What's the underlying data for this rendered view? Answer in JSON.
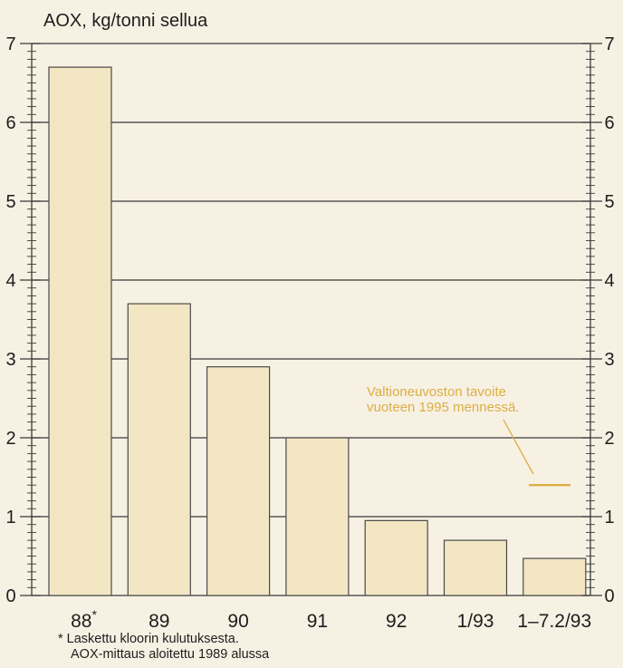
{
  "chart_data": {
    "type": "bar",
    "ylabel": "AOX, kg/tonni sellua",
    "categories": [
      "88",
      "89",
      "90",
      "91",
      "92",
      "1/93",
      "1–7.2/93"
    ],
    "values": [
      6.7,
      3.7,
      2.9,
      2.0,
      0.95,
      0.7,
      0.47
    ],
    "footnote_marker": "*",
    "footnote_marked_index": 0,
    "ylim": [
      0,
      7
    ],
    "yticks": [
      0,
      1,
      2,
      3,
      4,
      5,
      6,
      7
    ],
    "minor_tick_step": 0.1,
    "y_axis_sides": [
      "left",
      "right"
    ],
    "grid": "horizontal",
    "annotation": {
      "lines": [
        "Valtioneuvoston tavoite",
        "vuoteen 1995 mennessä."
      ],
      "target_value": 1.4
    },
    "footnote": [
      "* Laskettu kloorin kulutuksesta.",
      "AOX-mittaus aloitettu 1989 alussa"
    ]
  },
  "colors": {
    "background": "#f7f1e3",
    "bar_fill": "#f3e6c3",
    "bar_stroke": "#4a4a4a",
    "axis": "#3a3a3a",
    "annotation": "#dcae45"
  }
}
